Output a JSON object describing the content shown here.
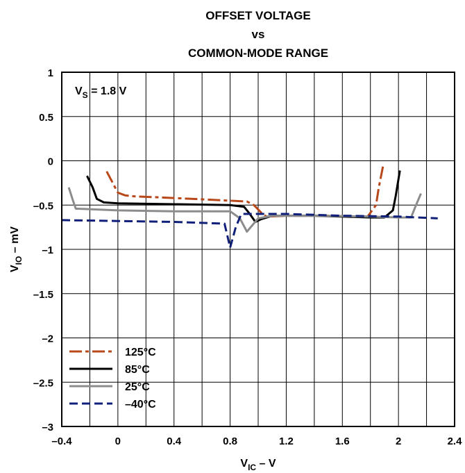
{
  "chart_data": {
    "type": "line",
    "title_lines": [
      "OFFSET VOLTAGE",
      "vs",
      "COMMON-MODE RANGE"
    ],
    "annotation": {
      "main": "V",
      "sub": "S",
      "rest": " = 1.8 V"
    },
    "xlabel": {
      "main": "V",
      "sub": "IC",
      "rest": " – V"
    },
    "ylabel": {
      "main": "V",
      "sub": "IO",
      "rest": " – mV"
    },
    "xlim": [
      -0.4,
      2.4
    ],
    "ylim": [
      -3,
      1
    ],
    "x_minor_step": 0.2,
    "xticks": [
      -0.4,
      0,
      0.4,
      0.8,
      1.2,
      1.6,
      2,
      2.4
    ],
    "xtick_labels": [
      "–0.4",
      "0",
      "0.4",
      "0.8",
      "1.2",
      "1.6",
      "2",
      "2.4"
    ],
    "yticks": [
      1,
      0.5,
      0,
      -0.5,
      -1,
      -1.5,
      -2,
      -2.5,
      -3
    ],
    "ytick_labels": [
      "1",
      "0.5",
      "0",
      "–0.5",
      "–1",
      "–1.5",
      "–2",
      "–2.5",
      "–3"
    ],
    "grid": true,
    "legend_position": "bottom-left",
    "series": [
      {
        "name": "125°C",
        "color": "#b8481a",
        "dash": "18,5,5,5",
        "points": [
          [
            -0.08,
            -0.12
          ],
          [
            -0.02,
            -0.3
          ],
          [
            0.0,
            -0.36
          ],
          [
            0.05,
            -0.39
          ],
          [
            0.1,
            -0.4
          ],
          [
            0.4,
            -0.42
          ],
          [
            0.8,
            -0.45
          ],
          [
            0.92,
            -0.46
          ],
          [
            0.97,
            -0.5
          ],
          [
            1.03,
            -0.6
          ],
          [
            1.06,
            -0.63
          ],
          [
            1.2,
            -0.62
          ],
          [
            1.5,
            -0.62
          ],
          [
            1.7,
            -0.63
          ],
          [
            1.78,
            -0.63
          ],
          [
            1.84,
            -0.5
          ],
          [
            1.86,
            -0.3
          ],
          [
            1.89,
            -0.06
          ]
        ]
      },
      {
        "name": "85°C",
        "color": "#000000",
        "dash": "",
        "points": [
          [
            -0.22,
            -0.17
          ],
          [
            -0.18,
            -0.3
          ],
          [
            -0.15,
            -0.43
          ],
          [
            -0.1,
            -0.47
          ],
          [
            0.0,
            -0.48
          ],
          [
            0.4,
            -0.49
          ],
          [
            0.8,
            -0.5
          ],
          [
            0.9,
            -0.52
          ],
          [
            0.94,
            -0.6
          ],
          [
            0.98,
            -0.69
          ],
          [
            1.02,
            -0.66
          ],
          [
            1.1,
            -0.62
          ],
          [
            1.4,
            -0.62
          ],
          [
            1.8,
            -0.64
          ],
          [
            1.9,
            -0.64
          ],
          [
            1.96,
            -0.56
          ],
          [
            1.98,
            -0.4
          ],
          [
            2.01,
            -0.11
          ]
        ]
      },
      {
        "name": "25°C",
        "color": "#8c8c8c",
        "dash": "",
        "points": [
          [
            -0.35,
            -0.3
          ],
          [
            -0.32,
            -0.45
          ],
          [
            -0.3,
            -0.54
          ],
          [
            0.0,
            -0.56
          ],
          [
            0.4,
            -0.57
          ],
          [
            0.8,
            -0.57
          ],
          [
            0.87,
            -0.65
          ],
          [
            0.92,
            -0.8
          ],
          [
            1.0,
            -0.65
          ],
          [
            1.1,
            -0.62
          ],
          [
            1.4,
            -0.62
          ],
          [
            1.8,
            -0.63
          ],
          [
            2.0,
            -0.64
          ],
          [
            2.09,
            -0.64
          ],
          [
            2.12,
            -0.52
          ],
          [
            2.16,
            -0.37
          ]
        ]
      },
      {
        "name": "–40°C",
        "color": "#10207a",
        "dash": "12,6",
        "points": [
          [
            -0.4,
            -0.67
          ],
          [
            0.0,
            -0.68
          ],
          [
            0.4,
            -0.69
          ],
          [
            0.76,
            -0.71
          ],
          [
            0.8,
            -0.98
          ],
          [
            0.84,
            -0.75
          ],
          [
            0.88,
            -0.6
          ],
          [
            0.92,
            -0.6
          ],
          [
            1.2,
            -0.6
          ],
          [
            1.6,
            -0.62
          ],
          [
            2.0,
            -0.63
          ],
          [
            2.28,
            -0.65
          ]
        ]
      }
    ]
  }
}
